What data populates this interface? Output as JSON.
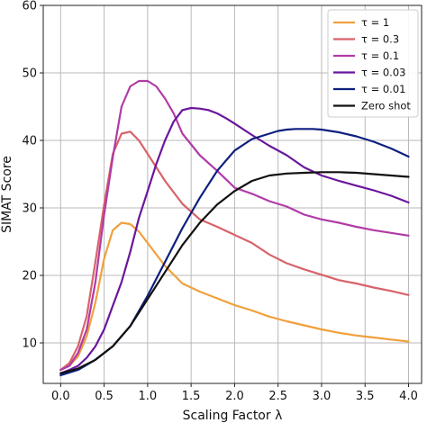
{
  "chart_data": {
    "type": "line",
    "xlabel": "Scaling Factor λ",
    "ylabel": "SIMAT Score",
    "xlim": [
      -0.2,
      4.15
    ],
    "ylim": [
      4,
      60
    ],
    "xticks": [
      0.0,
      0.5,
      1.0,
      1.5,
      2.0,
      2.5,
      3.0,
      3.5,
      4.0
    ],
    "xtick_labels": [
      "0.0",
      "0.5",
      "1.0",
      "1.5",
      "2.0",
      "2.5",
      "3.0",
      "3.5",
      "4.0"
    ],
    "yticks": [
      10,
      20,
      30,
      40,
      50,
      60
    ],
    "ytick_labels": [
      "10",
      "20",
      "30",
      "40",
      "50",
      "60"
    ],
    "grid": true,
    "legend_position": "top-right",
    "series": [
      {
        "name": "τ = 1",
        "color": "#f0a03c",
        "x": [
          0.0,
          0.1,
          0.2,
          0.3,
          0.4,
          0.5,
          0.6,
          0.7,
          0.8,
          0.9,
          1.0,
          1.2,
          1.4,
          1.6,
          1.8,
          2.0,
          2.2,
          2.4,
          2.6,
          2.8,
          3.0,
          3.2,
          3.4,
          3.6,
          3.8,
          4.0
        ],
        "y": [
          6.0,
          6.6,
          8.0,
          11.0,
          16.0,
          22.5,
          26.7,
          27.8,
          27.6,
          26.5,
          24.8,
          21.4,
          18.8,
          17.6,
          16.6,
          15.6,
          14.8,
          13.9,
          13.2,
          12.6,
          12.0,
          11.5,
          11.1,
          10.8,
          10.5,
          10.2
        ]
      },
      {
        "name": "τ = 0.3",
        "color": "#d9626a",
        "x": [
          0.0,
          0.1,
          0.2,
          0.3,
          0.4,
          0.5,
          0.6,
          0.7,
          0.8,
          0.9,
          1.0,
          1.2,
          1.4,
          1.6,
          1.8,
          2.0,
          2.2,
          2.4,
          2.6,
          2.8,
          3.0,
          3.2,
          3.4,
          3.6,
          3.8,
          4.0
        ],
        "y": [
          6.0,
          7.0,
          9.5,
          14.0,
          22.0,
          30.5,
          38.0,
          41.0,
          41.3,
          40.0,
          38.0,
          34.0,
          30.6,
          28.3,
          27.2,
          26.0,
          24.8,
          23.1,
          21.8,
          20.9,
          20.1,
          19.3,
          18.8,
          18.2,
          17.7,
          17.1
        ]
      },
      {
        "name": "τ = 0.1",
        "color": "#b13ba6",
        "x": [
          0.0,
          0.1,
          0.2,
          0.3,
          0.4,
          0.5,
          0.6,
          0.7,
          0.8,
          0.9,
          1.0,
          1.1,
          1.2,
          1.3,
          1.4,
          1.6,
          1.8,
          2.0,
          2.2,
          2.4,
          2.6,
          2.8,
          3.0,
          3.2,
          3.4,
          3.6,
          3.8,
          4.0
        ],
        "y": [
          6.0,
          6.6,
          8.5,
          12.0,
          19.0,
          29.0,
          37.5,
          45.0,
          48.0,
          48.8,
          48.8,
          48.0,
          46.2,
          44.0,
          41.0,
          37.8,
          35.5,
          33.0,
          32.1,
          31.0,
          30.2,
          29.0,
          28.3,
          27.8,
          27.2,
          26.7,
          26.3,
          25.9
        ]
      },
      {
        "name": "τ = 0.03",
        "color": "#6a169c",
        "x": [
          0.0,
          0.1,
          0.2,
          0.3,
          0.4,
          0.5,
          0.6,
          0.7,
          0.8,
          0.9,
          1.0,
          1.1,
          1.2,
          1.3,
          1.4,
          1.5,
          1.6,
          1.7,
          1.8,
          1.9,
          2.0,
          2.2,
          2.4,
          2.6,
          2.8,
          3.0,
          3.2,
          3.4,
          3.6,
          3.8,
          4.0
        ],
        "y": [
          5.5,
          6.0,
          6.6,
          7.8,
          9.5,
          12.0,
          15.5,
          19.0,
          23.5,
          28.5,
          32.5,
          36.5,
          40.0,
          42.8,
          44.5,
          44.8,
          44.7,
          44.5,
          44.0,
          43.3,
          42.5,
          40.8,
          39.2,
          37.8,
          36.0,
          34.8,
          34.0,
          33.3,
          32.6,
          31.8,
          30.8
        ]
      },
      {
        "name": "τ = 0.01",
        "color": "#0d1f7e",
        "x": [
          0.0,
          0.2,
          0.4,
          0.6,
          0.8,
          1.0,
          1.2,
          1.4,
          1.6,
          1.8,
          2.0,
          2.2,
          2.4,
          2.5,
          2.6,
          2.7,
          2.8,
          2.9,
          3.0,
          3.2,
          3.4,
          3.6,
          3.8,
          4.0
        ],
        "y": [
          5.2,
          6.0,
          7.5,
          9.5,
          12.5,
          17.0,
          22.0,
          27.0,
          31.5,
          35.5,
          38.5,
          40.2,
          41.0,
          41.4,
          41.6,
          41.7,
          41.7,
          41.7,
          41.6,
          41.2,
          40.6,
          39.8,
          38.8,
          37.6
        ]
      },
      {
        "name": "Zero shot",
        "color": "#111111",
        "x": [
          0.0,
          0.2,
          0.4,
          0.6,
          0.8,
          1.0,
          1.2,
          1.4,
          1.6,
          1.8,
          2.0,
          2.2,
          2.4,
          2.6,
          2.8,
          3.0,
          3.2,
          3.4,
          3.6,
          3.8,
          4.0
        ],
        "y": [
          5.5,
          6.2,
          7.5,
          9.5,
          12.5,
          16.5,
          20.5,
          24.5,
          27.8,
          30.5,
          32.5,
          34.0,
          34.8,
          35.1,
          35.2,
          35.3,
          35.3,
          35.2,
          35.0,
          34.8,
          34.6
        ]
      }
    ]
  }
}
